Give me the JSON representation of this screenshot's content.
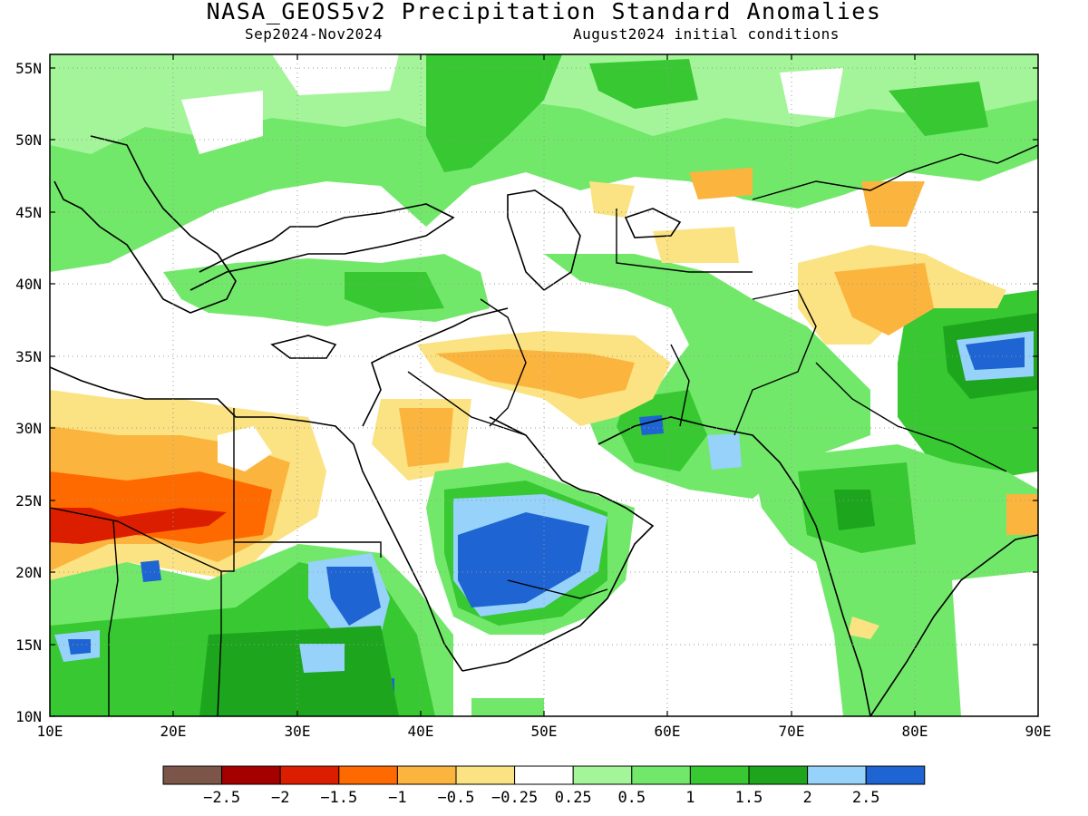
{
  "title": "NASA_GEOS5v2 Precipitation Standard Anomalies",
  "period": "Sep2024-Nov2024",
  "initial_conditions": "August2024 initial conditions",
  "lat_labels": [
    "10N",
    "15N",
    "20N",
    "25N",
    "30N",
    "35N",
    "40N",
    "45N",
    "50N",
    "55N"
  ],
  "lon_labels": [
    "10E",
    "20E",
    "30E",
    "40E",
    "50E",
    "60E",
    "70E",
    "80E",
    "90E"
  ],
  "colorbar": {
    "colors": [
      "#7a5548",
      "#a50000",
      "#dc1e00",
      "#ff6a00",
      "#fbb53e",
      "#fbe383",
      "#ffffff",
      "#a4f59a",
      "#72e86a",
      "#37c832",
      "#1ea51e",
      "#96d2fa",
      "#1e64d2"
    ],
    "labels": [
      "-2.5",
      "-2",
      "-1.5",
      "-1",
      "-0.5",
      "-0.25",
      "0.25",
      "0.5",
      "1",
      "1.5",
      "2",
      "2.5"
    ]
  }
}
